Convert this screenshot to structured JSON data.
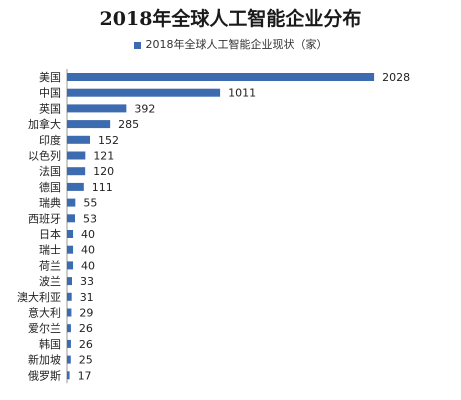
{
  "chart_data": {
    "type": "bar",
    "orientation": "horizontal",
    "title": "2018年全球人工智能企业分布",
    "legend_position": "top",
    "series": [
      {
        "name": "2018年全球人工智能企业现状（家）",
        "color": "#3C6BB0",
        "values": [
          2028,
          1011,
          392,
          285,
          152,
          121,
          120,
          111,
          55,
          53,
          40,
          40,
          40,
          33,
          31,
          29,
          26,
          26,
          25,
          17
        ]
      }
    ],
    "categories": [
      "美国",
      "中国",
      "英国",
      "加拿大",
      "印度",
      "以色列",
      "法国",
      "德国",
      "瑞典",
      "西班牙",
      "日本",
      "瑞士",
      "荷兰",
      "波兰",
      "澳大利亚",
      "意大利",
      "爱尔兰",
      "韩国",
      "新加坡",
      "俄罗斯"
    ],
    "xlim": [
      0,
      2100
    ],
    "grid": false,
    "data_labels": true
  }
}
